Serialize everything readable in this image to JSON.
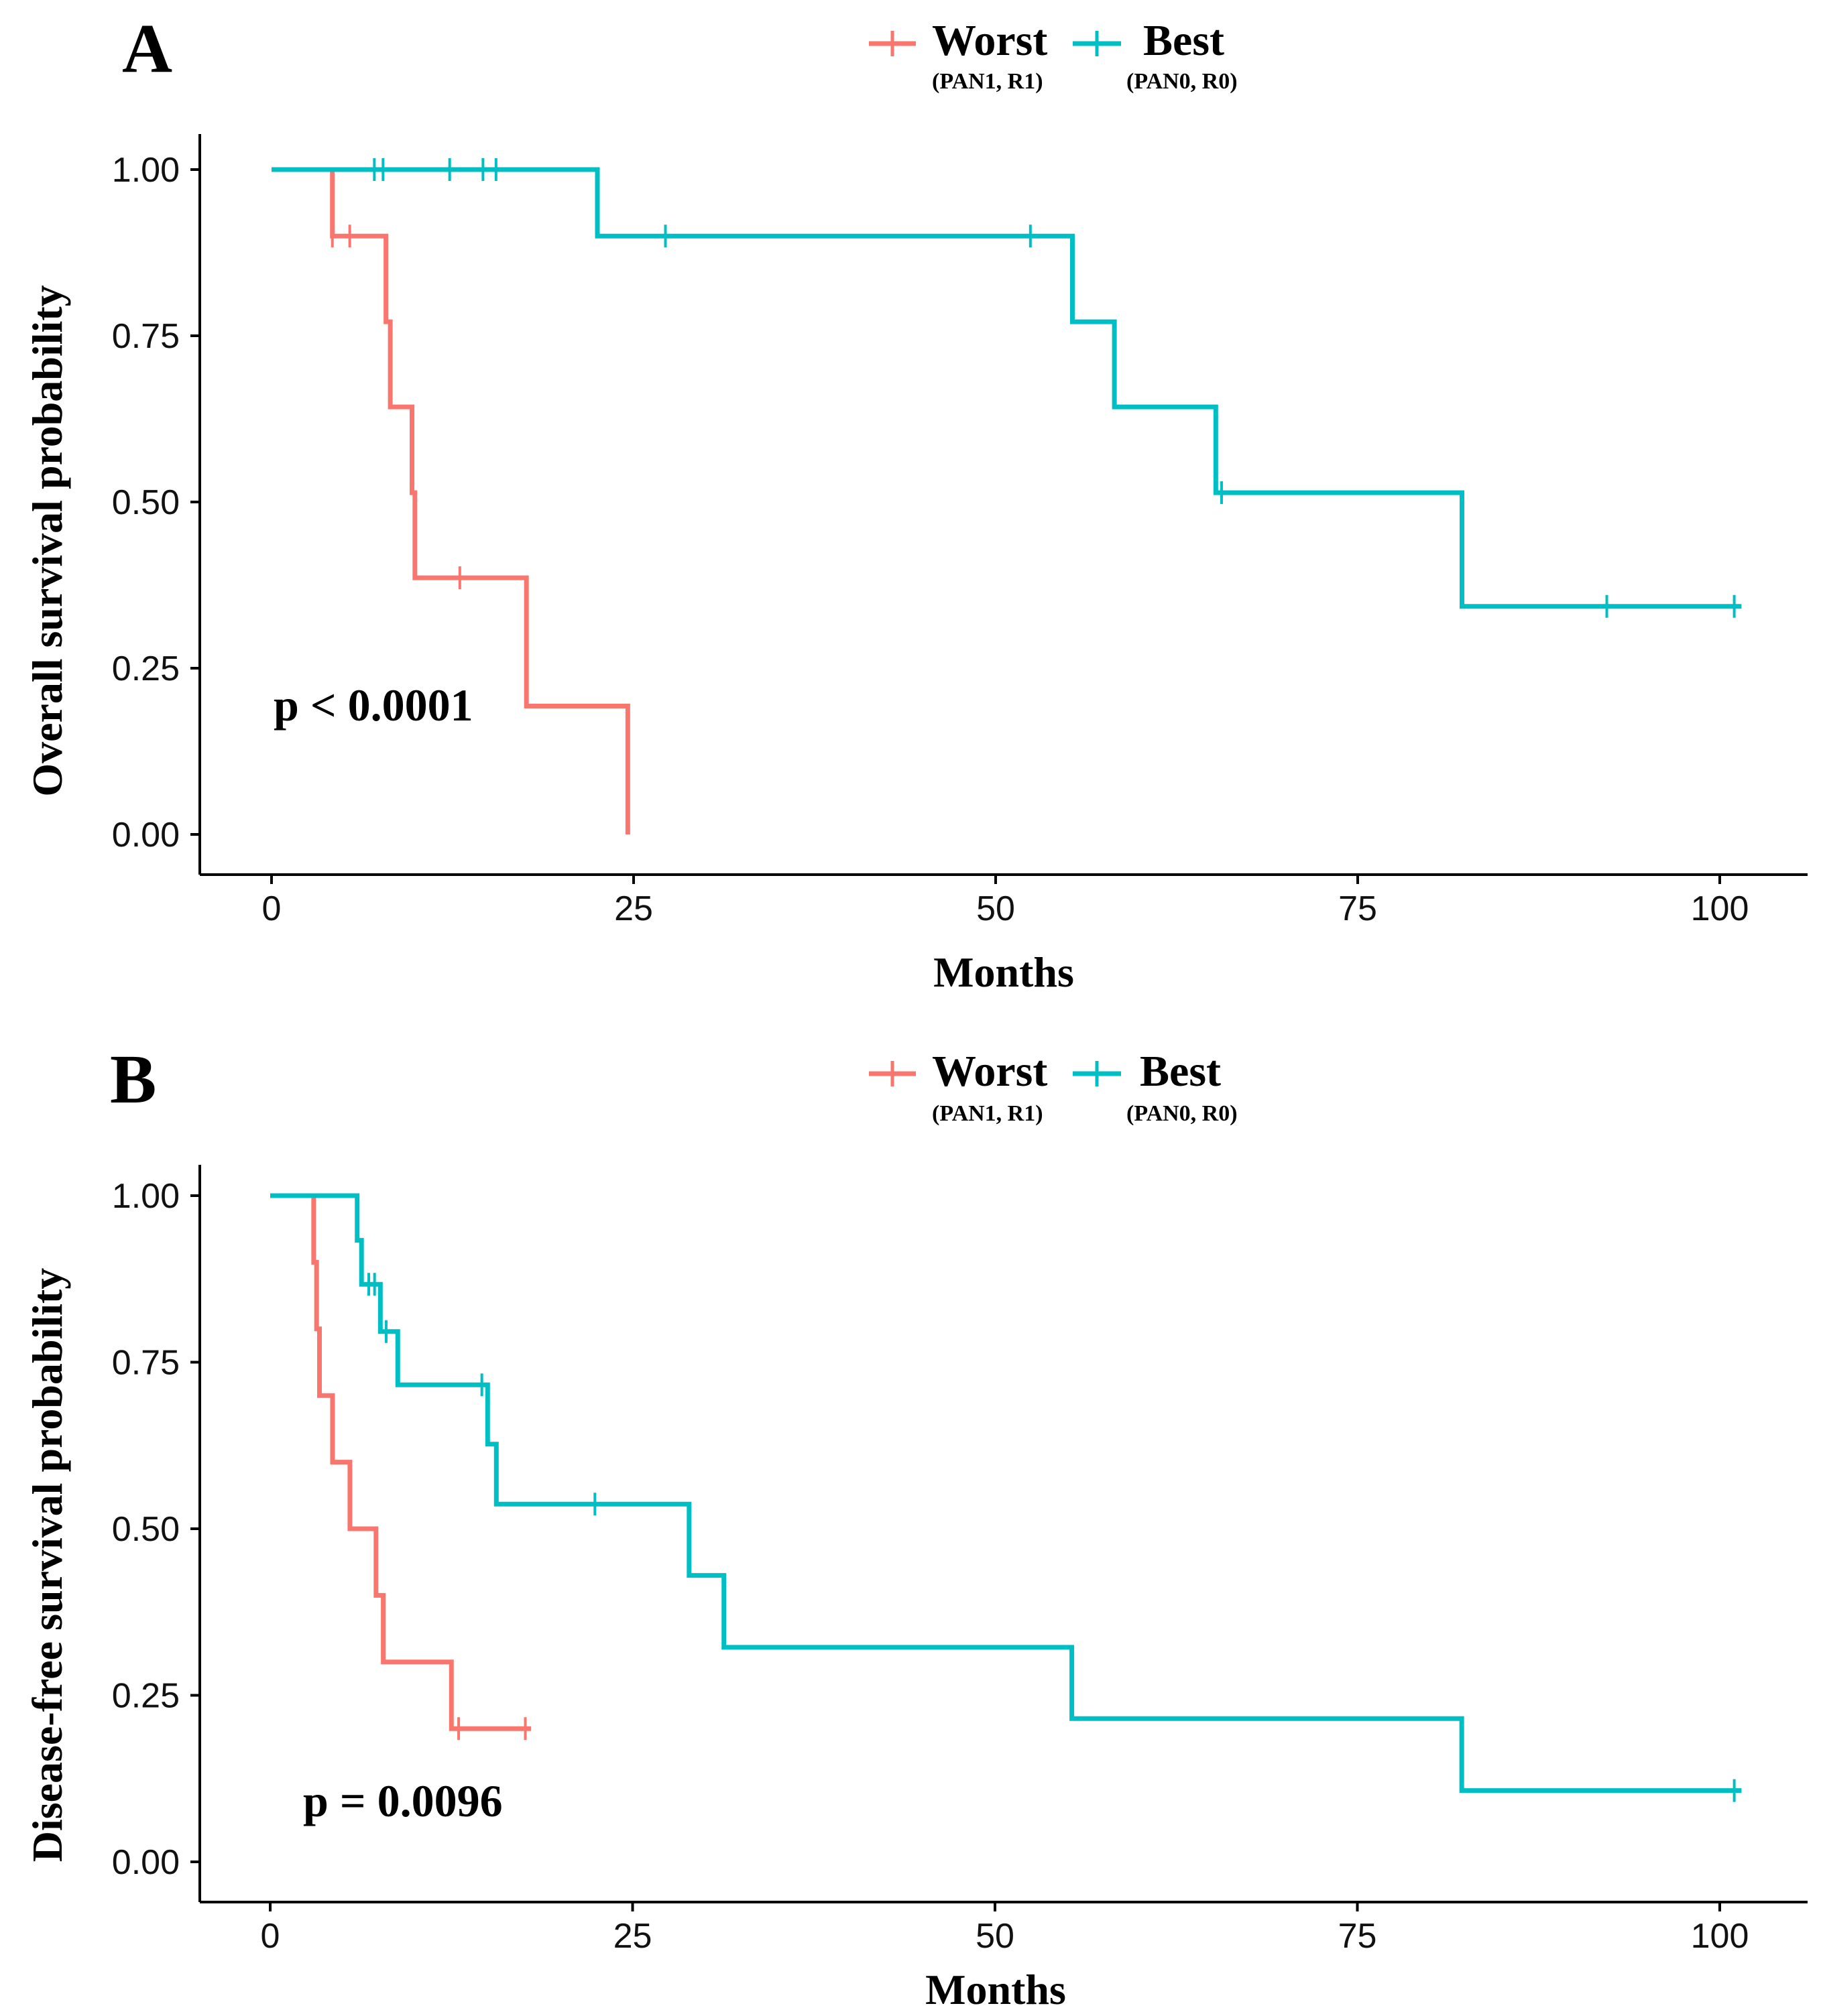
{
  "colors": {
    "worst": "#f8766d",
    "best": "#00bfc4",
    "axis": "#000000"
  },
  "legend": {
    "worst": {
      "label": "Worst",
      "sublabel": "(PAN1, R1)"
    },
    "best": {
      "label": "Best",
      "sublabel": "(PAN0, R0)"
    }
  },
  "chart_data": [
    {
      "type": "line",
      "subtype": "kaplan-meier step",
      "panel": "A",
      "title": "",
      "xlabel": "Months",
      "ylabel": "Overall survival probability",
      "xlim": [
        -5,
        105
      ],
      "ylim": [
        -0.05,
        1.05
      ],
      "xticks": [
        "0",
        "25",
        "50",
        "75",
        "100"
      ],
      "yticks": [
        "0.00",
        "0.25",
        "0.50",
        "0.75",
        "1.00"
      ],
      "annotation": "p < 0.0001",
      "series": [
        {
          "name": "Worst",
          "key": "worst",
          "steps": [
            [
              0,
              1.0
            ],
            [
              4.2,
              0.9
            ],
            [
              7.9,
              0.771
            ],
            [
              8.2,
              0.643
            ],
            [
              9.7,
              0.514
            ],
            [
              9.9,
              0.386
            ],
            [
              17.6,
              0.193
            ],
            [
              24.6,
              0.0
            ]
          ],
          "end": 24.6,
          "censored": [
            4.2,
            5.4,
            13.0
          ]
        },
        {
          "name": "Best",
          "key": "best",
          "start": 0,
          "steps": [
            [
              0,
              1.0
            ],
            [
              22.5,
              0.9
            ],
            [
              55.3,
              0.771
            ],
            [
              58.2,
              0.643
            ],
            [
              65.2,
              0.514
            ],
            [
              82.2,
              0.343
            ]
          ],
          "end": 101.5,
          "censored": [
            7.1,
            7.7,
            12.3,
            14.6,
            15.5,
            27.2,
            52.4,
            65.6,
            92.2,
            101.0
          ]
        }
      ]
    },
    {
      "type": "line",
      "subtype": "kaplan-meier step",
      "panel": "B",
      "title": "",
      "xlabel": "Months",
      "ylabel": "Disease-free survival probability",
      "xlim": [
        -5,
        105
      ],
      "ylim": [
        -0.05,
        1.05
      ],
      "xticks": [
        "0",
        "25",
        "50",
        "75",
        "100"
      ],
      "yticks": [
        "0.00",
        "0.25",
        "0.50",
        "0.75",
        "1.00"
      ],
      "annotation": "p = 0.0096",
      "series": [
        {
          "name": "Worst",
          "key": "worst",
          "steps": [
            [
              0,
              1.0
            ],
            [
              3.0,
              0.9
            ],
            [
              3.2,
              0.8
            ],
            [
              3.4,
              0.7
            ],
            [
              4.3,
              0.6
            ],
            [
              5.5,
              0.5
            ],
            [
              7.3,
              0.4
            ],
            [
              7.8,
              0.3
            ],
            [
              12.5,
              0.2
            ]
          ],
          "end": 18.0,
          "censored": [
            13.0,
            17.6
          ]
        },
        {
          "name": "Best",
          "key": "best",
          "steps": [
            [
              0,
              1.0
            ],
            [
              6.0,
              0.933
            ],
            [
              6.3,
              0.867
            ],
            [
              7.5,
              0.867
            ],
            [
              7.6,
              0.796
            ],
            [
              8.8,
              0.716
            ],
            [
              14.8,
              0.716
            ],
            [
              15.0,
              0.627
            ],
            [
              15.6,
              0.537
            ],
            [
              28.9,
              0.43
            ],
            [
              31.3,
              0.322
            ],
            [
              55.3,
              0.215
            ],
            [
              82.2,
              0.107
            ]
          ],
          "end": 101.5,
          "censored": [
            6.8,
            7.2,
            8.0,
            14.6,
            22.4,
            101.0
          ]
        }
      ]
    }
  ]
}
